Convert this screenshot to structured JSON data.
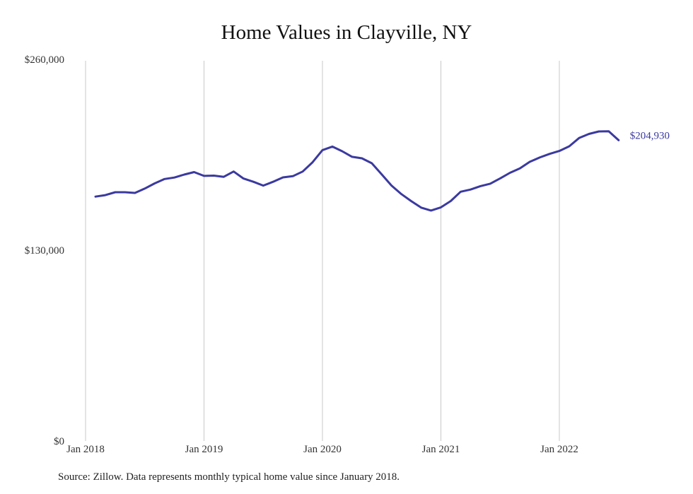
{
  "colors": {
    "line": "#3b3aa0",
    "grid": "#c8c8c8",
    "text": "#333333"
  },
  "source_note": "Source: Zillow. Data represents monthly typical home value since January 2018.",
  "chart_data": {
    "type": "line",
    "title": "Home Values in Clayville, NY",
    "xlabel": "",
    "ylabel": "",
    "ylim": [
      0,
      260000
    ],
    "y_ticks": [
      0,
      130000,
      260000
    ],
    "y_tick_labels": [
      "$0",
      "$130,000",
      "$260,000"
    ],
    "x_ticks": [
      "2018-01",
      "2019-01",
      "2020-01",
      "2021-01",
      "2022-01"
    ],
    "x_tick_labels": [
      "Jan 2018",
      "Jan 2019",
      "Jan 2020",
      "Jan 2021",
      "Jan 2022"
    ],
    "grid": {
      "vertical": true,
      "horizontal": false
    },
    "end_label": "$204,930",
    "series": [
      {
        "name": "",
        "x": [
          "2018-02",
          "2018-03",
          "2018-04",
          "2018-05",
          "2018-06",
          "2018-07",
          "2018-08",
          "2018-09",
          "2018-10",
          "2018-11",
          "2018-12",
          "2019-01",
          "2019-02",
          "2019-03",
          "2019-04",
          "2019-05",
          "2019-06",
          "2019-07",
          "2019-08",
          "2019-09",
          "2019-10",
          "2019-11",
          "2019-12",
          "2020-01",
          "2020-02",
          "2020-03",
          "2020-04",
          "2020-05",
          "2020-06",
          "2020-07",
          "2020-08",
          "2020-09",
          "2020-10",
          "2020-11",
          "2020-12",
          "2021-01",
          "2021-02",
          "2021-03",
          "2021-04",
          "2021-05",
          "2021-06",
          "2021-07",
          "2021-08",
          "2021-09",
          "2021-10",
          "2021-11",
          "2021-12",
          "2022-01",
          "2022-02",
          "2022-03",
          "2022-04",
          "2022-05",
          "2022-06",
          "2022-07"
        ],
        "values": [
          166500,
          167500,
          169500,
          169500,
          169000,
          172000,
          175500,
          178500,
          179500,
          181500,
          183200,
          180600,
          180800,
          180000,
          183600,
          178800,
          176600,
          174000,
          176600,
          179600,
          180400,
          183600,
          189900,
          198200,
          200600,
          197400,
          193600,
          192600,
          189200,
          181600,
          174000,
          168200,
          163400,
          159000,
          157000,
          159200,
          163500,
          169800,
          171300,
          173600,
          175300,
          178900,
          182700,
          185700,
          190200,
          193100,
          195600,
          197600,
          200800,
          206400,
          209200,
          210900,
          211000,
          204930
        ]
      }
    ]
  }
}
